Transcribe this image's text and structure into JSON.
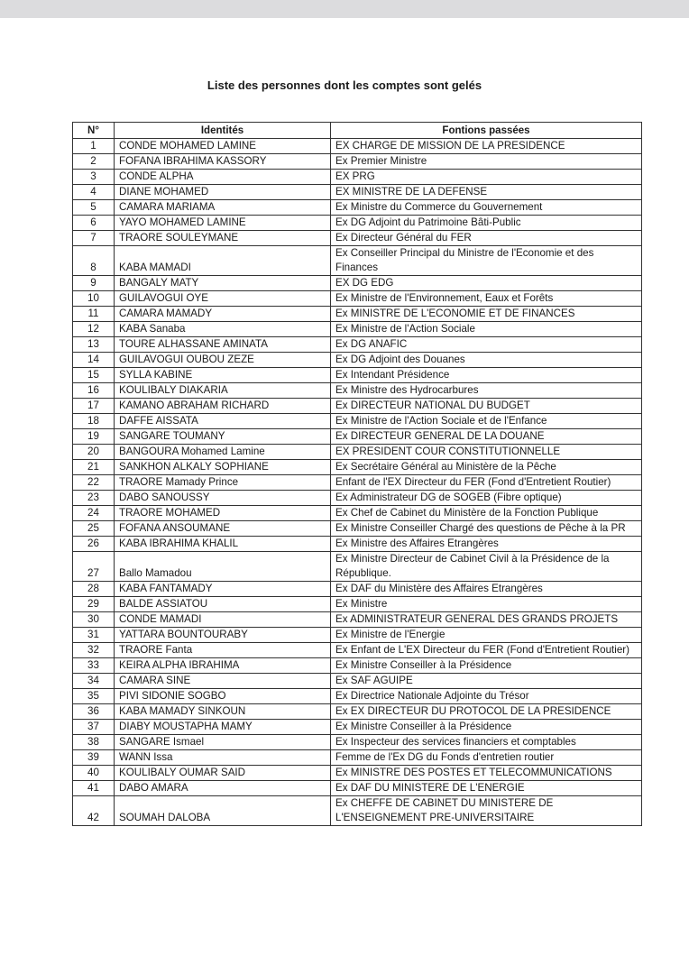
{
  "title": "Liste des personnes dont les comptes sont gelés",
  "headers": {
    "num": "N°",
    "identity": "Identités",
    "functions": "Fontions passées"
  },
  "rows": [
    [
      "1",
      "CONDE MOHAMED LAMINE",
      "EX CHARGE DE MISSION DE LA PRESIDENCE"
    ],
    [
      "2",
      "FOFANA IBRAHIMA KASSORY",
      "Ex Premier Ministre"
    ],
    [
      "3",
      "CONDE ALPHA",
      "EX PRG"
    ],
    [
      "4",
      "DIANE MOHAMED",
      "EX MINISTRE DE LA DEFENSE"
    ],
    [
      "5",
      "CAMARA MARIAMA",
      "Ex Ministre du Commerce du Gouvernement"
    ],
    [
      "6",
      "YAYO MOHAMED LAMINE",
      "Ex DG Adjoint du Patrimoine Bâti-Public"
    ],
    [
      "7",
      "TRAORE SOULEYMANE",
      "Ex Directeur Général du FER"
    ],
    [
      "8",
      "KABA MAMADI",
      "Ex Conseiller Principal du Ministre de l'Economie et des Finances"
    ],
    [
      "9",
      "BANGALY MATY",
      "EX DG EDG"
    ],
    [
      "10",
      "GUILAVOGUI OYE",
      "Ex Ministre de l'Environnement, Eaux et Forêts"
    ],
    [
      "11",
      "CAMARA MAMADY",
      "Ex MINISTRE DE L'ECONOMIE ET DE FINANCES"
    ],
    [
      "12",
      "KABA Sanaba",
      "Ex Ministre de l'Action Sociale"
    ],
    [
      "13",
      "TOURE ALHASSANE AMINATA",
      "Ex DG ANAFIC"
    ],
    [
      "14",
      "GUILAVOGUI OUBOU ZEZE",
      "Ex DG Adjoint des Douanes"
    ],
    [
      "15",
      "SYLLA KABINE",
      "Ex Intendant Présidence"
    ],
    [
      "16",
      "KOULIBALY DIAKARIA",
      "Ex Ministre des Hydrocarbures"
    ],
    [
      "17",
      "KAMANO ABRAHAM RICHARD",
      "Ex DIRECTEUR NATIONAL DU BUDGET"
    ],
    [
      "18",
      "DAFFE AISSATA",
      "Ex Ministre de l'Action Sociale et de l'Enfance"
    ],
    [
      "19",
      "SANGARE TOUMANY",
      "Ex DIRECTEUR GENERAL DE LA DOUANE"
    ],
    [
      "20",
      "BANGOURA Mohamed Lamine",
      "EX PRESIDENT COUR CONSTITUTIONNELLE"
    ],
    [
      "21",
      "SANKHON ALKALY SOPHIANE",
      "Ex Secrétaire Général au Ministère de la Pêche"
    ],
    [
      "22",
      "TRAORE Mamady Prince",
      "Enfant de l'EX Directeur du FER (Fond d'Entretient Routier)"
    ],
    [
      "23",
      "DABO SANOUSSY",
      "Ex Administrateur DG de SOGEB (Fibre optique)"
    ],
    [
      "24",
      "TRAORE MOHAMED",
      "Ex Chef de Cabinet du Ministère de la Fonction Publique"
    ],
    [
      "25",
      "FOFANA ANSOUMANE",
      "Ex Ministre Conseiller Chargé des questions de Pêche à la PR"
    ],
    [
      "26",
      "KABA IBRAHIMA KHALIL",
      "Ex Ministre des Affaires Etrangères"
    ],
    [
      "27",
      "Ballo Mamadou",
      "Ex Ministre Directeur de Cabinet Civil à la Présidence de la République."
    ],
    [
      "28",
      "KABA FANTAMADY",
      "Ex DAF du Ministère des Affaires Etrangères"
    ],
    [
      "29",
      "BALDE ASSIATOU",
      "Ex Ministre"
    ],
    [
      "30",
      "CONDE MAMADI",
      "Ex ADMINISTRATEUR GENERAL DES GRANDS PROJETS"
    ],
    [
      "31",
      "YATTARA BOUNTOURABY",
      "Ex Ministre de l'Energie"
    ],
    [
      "32",
      "TRAORE Fanta",
      "Ex Enfant de L'EX Directeur du FER (Fond d'Entretient Routier)"
    ],
    [
      "33",
      "KEIRA ALPHA IBRAHIMA",
      "Ex Ministre Conseiller à la Présidence"
    ],
    [
      "34",
      "CAMARA SINE",
      "Ex SAF AGUIPE"
    ],
    [
      "35",
      "PIVI SIDONIE SOGBO",
      "Ex Directrice Nationale Adjointe du Trésor"
    ],
    [
      "36",
      "KABA MAMADY SINKOUN",
      "Ex EX DIRECTEUR DU PROTOCOL DE LA PRESIDENCE"
    ],
    [
      "37",
      "DIABY MOUSTAPHA MAMY",
      "Ex Ministre Conseiller à la Présidence"
    ],
    [
      "38",
      "SANGARE Ismael",
      "Ex Inspecteur des services financiers et comptables"
    ],
    [
      "39",
      "WANN Issa",
      "Femme de l'Ex DG du Fonds d'entretien routier"
    ],
    [
      "40",
      "KOULIBALY OUMAR SAID",
      "Ex MINISTRE DES POSTES ET TELECOMMUNICATIONS"
    ],
    [
      "41",
      "DABO AMARA",
      "Ex DAF DU MINISTERE DE L'ENERGIE"
    ],
    [
      "42",
      "SOUMAH DALOBA",
      "Ex CHEFFE DE CABINET DU MINISTERE DE L'ENSEIGNEMENT PRE-UNIVERSITAIRE"
    ]
  ]
}
